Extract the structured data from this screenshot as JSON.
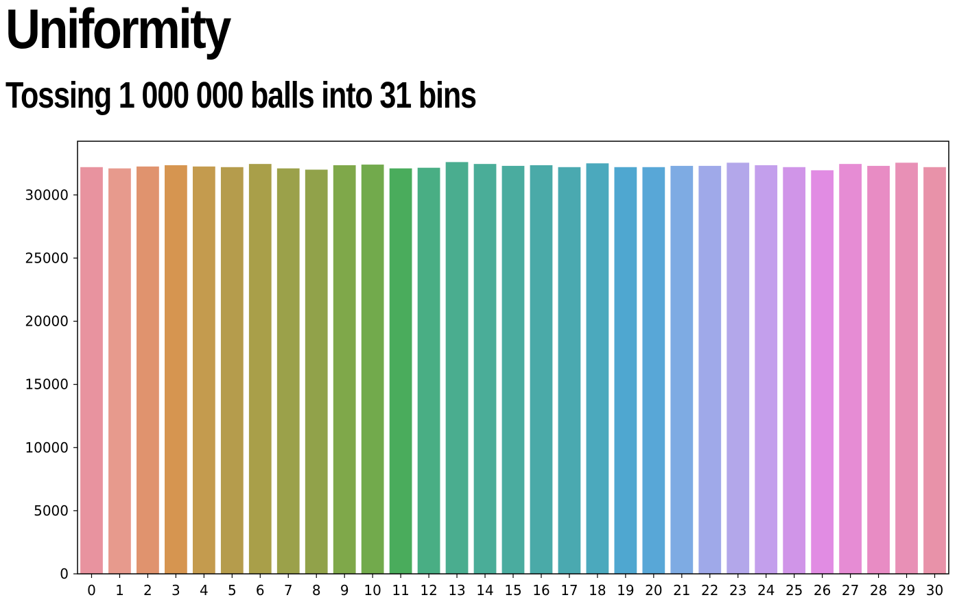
{
  "title": "Uniformity",
  "subtitle": "Tossing 1 000 000 balls into 31 bins",
  "chart_data": {
    "type": "bar",
    "title": "Uniformity",
    "subtitle": "Tossing 1 000 000 balls into 31 bins",
    "xlabel": "",
    "ylabel": "",
    "categories": [
      "0",
      "1",
      "2",
      "3",
      "4",
      "5",
      "6",
      "7",
      "8",
      "9",
      "10",
      "11",
      "12",
      "13",
      "14",
      "15",
      "16",
      "17",
      "18",
      "19",
      "20",
      "21",
      "22",
      "23",
      "24",
      "25",
      "26",
      "27",
      "28",
      "29",
      "30"
    ],
    "values": [
      32200,
      32100,
      32250,
      32350,
      32250,
      32200,
      32450,
      32100,
      32000,
      32350,
      32400,
      32100,
      32150,
      32600,
      32450,
      32300,
      32350,
      32200,
      32500,
      32200,
      32200,
      32300,
      32300,
      32550,
      32350,
      32200,
      31950,
      32450,
      32300,
      32550,
      32200
    ],
    "ylim": [
      0,
      34250
    ],
    "yticks": [
      "0",
      "5000",
      "10000",
      "15000",
      "20000",
      "25000",
      "30000"
    ],
    "ytick_values": [
      0,
      5000,
      10000,
      15000,
      20000,
      25000,
      30000
    ],
    "grid": false,
    "legend": "none",
    "colors": [
      "#e8939f",
      "#e79a8d",
      "#e0936e",
      "#d69550",
      "#c49b4e",
      "#b59c4c",
      "#a99f49",
      "#9ba14a",
      "#91a24a",
      "#7fa84a",
      "#72aa4c",
      "#4aac5c",
      "#49ae84",
      "#4aad8f",
      "#4aad98",
      "#4aac9f",
      "#4aaaa8",
      "#4aa9b0",
      "#4ba9bd",
      "#4fa7d0",
      "#58a7d7",
      "#7eabe3",
      "#9fa9e9",
      "#b3a7ea",
      "#c39fec",
      "#d095e8",
      "#e18ce3",
      "#e68cd4",
      "#e88cc4",
      "#e890b6",
      "#e892a9"
    ]
  }
}
